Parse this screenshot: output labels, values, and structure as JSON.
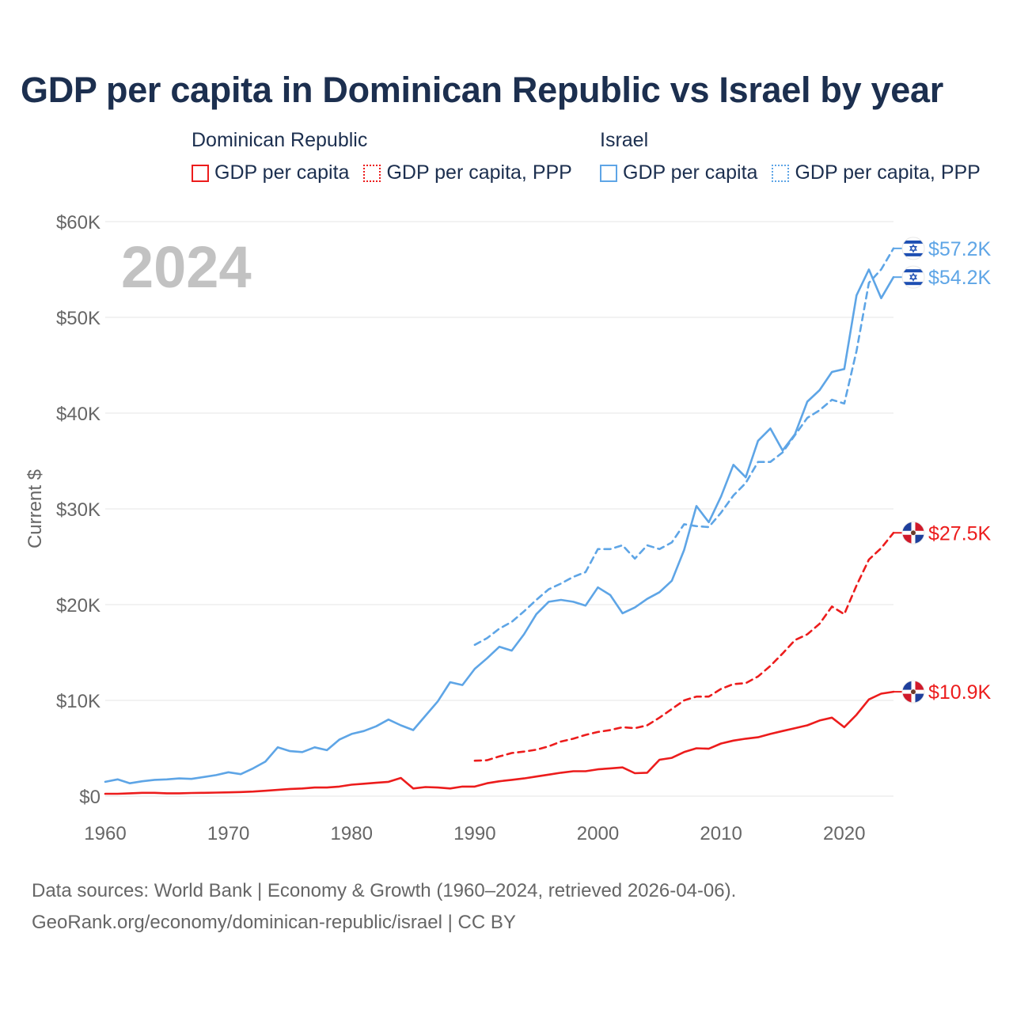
{
  "colors": {
    "dominican": "#ec1c1c",
    "israel": "#5ea5e6",
    "title": "#1c2f4f",
    "axis_text": "#666666",
    "year_watermark": "#c2c2c2",
    "grid": "#e6e6e6"
  },
  "legend": {
    "groups": [
      {
        "country": "Dominican Republic",
        "items": [
          "GDP per capita",
          "GDP per capita, PPP"
        ]
      },
      {
        "country": "Israel",
        "items": [
          "GDP per capita",
          "GDP per capita, PPP"
        ]
      }
    ]
  },
  "footer": {
    "line1": "Data sources: World Bank | Economy & Growth (1960–2024, retrieved 2026-04-06).",
    "line2": "GeoRank.org/economy/dominican-republic/israel | CC BY"
  },
  "chart_data": {
    "type": "line",
    "title": "GDP per capita in Dominican Republic vs Israel by year",
    "year_label": "2024",
    "xlabel": "",
    "ylabel": "Current $",
    "xlim": [
      1960,
      2024
    ],
    "ylim": [
      0,
      60000
    ],
    "x_ticks": [
      1960,
      1970,
      1980,
      1990,
      2000,
      2010,
      2020
    ],
    "y_ticks": [
      0,
      10000,
      20000,
      30000,
      40000,
      50000,
      60000
    ],
    "y_tick_labels": [
      "$0",
      "$10K",
      "$20K",
      "$30K",
      "$40K",
      "$50K",
      "$60K"
    ],
    "grid": true,
    "series": [
      {
        "name": "Israel GDP per capita, PPP",
        "country": "Israel",
        "color": "#5ea5e6",
        "dashed": true,
        "end_label": "$57.2K",
        "flag": "israel",
        "points": [
          [
            1990,
            15800
          ],
          [
            1991,
            16500
          ],
          [
            1992,
            17500
          ],
          [
            1993,
            18200
          ],
          [
            1994,
            19300
          ],
          [
            1995,
            20500
          ],
          [
            1996,
            21600
          ],
          [
            1997,
            22200
          ],
          [
            1998,
            22900
          ],
          [
            1999,
            23400
          ],
          [
            2000,
            25800
          ],
          [
            2001,
            25800
          ],
          [
            2002,
            26200
          ],
          [
            2003,
            24800
          ],
          [
            2004,
            26200
          ],
          [
            2005,
            25800
          ],
          [
            2006,
            26500
          ],
          [
            2007,
            28400
          ],
          [
            2008,
            28200
          ],
          [
            2009,
            28100
          ],
          [
            2010,
            29600
          ],
          [
            2011,
            31400
          ],
          [
            2012,
            32700
          ],
          [
            2013,
            34900
          ],
          [
            2014,
            34900
          ],
          [
            2015,
            35900
          ],
          [
            2016,
            37700
          ],
          [
            2017,
            39500
          ],
          [
            2018,
            40300
          ],
          [
            2019,
            41400
          ],
          [
            2020,
            41000
          ],
          [
            2021,
            46500
          ],
          [
            2022,
            53600
          ],
          [
            2023,
            55000
          ],
          [
            2024,
            57200
          ]
        ]
      },
      {
        "name": "Israel GDP per capita",
        "country": "Israel",
        "color": "#5ea5e6",
        "dashed": false,
        "end_label": "$54.2K",
        "flag": "israel",
        "points": [
          [
            1960,
            1500
          ],
          [
            1961,
            1750
          ],
          [
            1962,
            1350
          ],
          [
            1963,
            1550
          ],
          [
            1964,
            1700
          ],
          [
            1965,
            1750
          ],
          [
            1966,
            1850
          ],
          [
            1967,
            1800
          ],
          [
            1968,
            2000
          ],
          [
            1969,
            2200
          ],
          [
            1970,
            2500
          ],
          [
            1971,
            2300
          ],
          [
            1972,
            2900
          ],
          [
            1973,
            3600
          ],
          [
            1974,
            5100
          ],
          [
            1975,
            4700
          ],
          [
            1976,
            4600
          ],
          [
            1977,
            5100
          ],
          [
            1978,
            4800
          ],
          [
            1979,
            5900
          ],
          [
            1980,
            6500
          ],
          [
            1981,
            6800
          ],
          [
            1982,
            7300
          ],
          [
            1983,
            8000
          ],
          [
            1984,
            7400
          ],
          [
            1985,
            6900
          ],
          [
            1986,
            8400
          ],
          [
            1987,
            9900
          ],
          [
            1988,
            11900
          ],
          [
            1989,
            11600
          ],
          [
            1990,
            13300
          ],
          [
            1991,
            14400
          ],
          [
            1992,
            15600
          ],
          [
            1993,
            15200
          ],
          [
            1994,
            16900
          ],
          [
            1995,
            19000
          ],
          [
            1996,
            20300
          ],
          [
            1997,
            20500
          ],
          [
            1998,
            20300
          ],
          [
            1999,
            19900
          ],
          [
            2000,
            21800
          ],
          [
            2001,
            21000
          ],
          [
            2002,
            19100
          ],
          [
            2003,
            19700
          ],
          [
            2004,
            20600
          ],
          [
            2005,
            21300
          ],
          [
            2006,
            22500
          ],
          [
            2007,
            25700
          ],
          [
            2008,
            30300
          ],
          [
            2009,
            28600
          ],
          [
            2010,
            31300
          ],
          [
            2011,
            34600
          ],
          [
            2012,
            33300
          ],
          [
            2013,
            37100
          ],
          [
            2014,
            38400
          ],
          [
            2015,
            36100
          ],
          [
            2016,
            37800
          ],
          [
            2017,
            41200
          ],
          [
            2018,
            42400
          ],
          [
            2019,
            44300
          ],
          [
            2020,
            44600
          ],
          [
            2021,
            52300
          ],
          [
            2022,
            55000
          ],
          [
            2023,
            52000
          ],
          [
            2024,
            54200
          ]
        ]
      },
      {
        "name": "Dominican Republic GDP per capita, PPP",
        "country": "Dominican Republic",
        "color": "#ec1c1c",
        "dashed": true,
        "end_label": "$27.5K",
        "flag": "dominican",
        "points": [
          [
            1990,
            3700
          ],
          [
            1991,
            3750
          ],
          [
            1992,
            4150
          ],
          [
            1993,
            4500
          ],
          [
            1994,
            4650
          ],
          [
            1995,
            4850
          ],
          [
            1996,
            5200
          ],
          [
            1997,
            5700
          ],
          [
            1998,
            6000
          ],
          [
            1999,
            6400
          ],
          [
            2000,
            6700
          ],
          [
            2001,
            6900
          ],
          [
            2002,
            7200
          ],
          [
            2003,
            7100
          ],
          [
            2004,
            7400
          ],
          [
            2005,
            8200
          ],
          [
            2006,
            9100
          ],
          [
            2007,
            10000
          ],
          [
            2008,
            10400
          ],
          [
            2009,
            10400
          ],
          [
            2010,
            11200
          ],
          [
            2011,
            11700
          ],
          [
            2012,
            11800
          ],
          [
            2013,
            12500
          ],
          [
            2014,
            13600
          ],
          [
            2015,
            14900
          ],
          [
            2016,
            16300
          ],
          [
            2017,
            16900
          ],
          [
            2018,
            18000
          ],
          [
            2019,
            19800
          ],
          [
            2020,
            19000
          ],
          [
            2021,
            22000
          ],
          [
            2022,
            24700
          ],
          [
            2023,
            25900
          ],
          [
            2024,
            27500
          ]
        ]
      },
      {
        "name": "Dominican Republic GDP per capita",
        "country": "Dominican Republic",
        "color": "#ec1c1c",
        "dashed": false,
        "end_label": "$10.9K",
        "flag": "dominican",
        "points": [
          [
            1960,
            250
          ],
          [
            1961,
            250
          ],
          [
            1962,
            300
          ],
          [
            1963,
            350
          ],
          [
            1964,
            350
          ],
          [
            1965,
            300
          ],
          [
            1966,
            300
          ],
          [
            1967,
            330
          ],
          [
            1968,
            350
          ],
          [
            1969,
            370
          ],
          [
            1970,
            400
          ],
          [
            1971,
            430
          ],
          [
            1972,
            480
          ],
          [
            1973,
            560
          ],
          [
            1974,
            650
          ],
          [
            1975,
            750
          ],
          [
            1976,
            800
          ],
          [
            1977,
            900
          ],
          [
            1978,
            900
          ],
          [
            1979,
            1000
          ],
          [
            1980,
            1200
          ],
          [
            1981,
            1300
          ],
          [
            1982,
            1400
          ],
          [
            1983,
            1500
          ],
          [
            1984,
            1900
          ],
          [
            1985,
            800
          ],
          [
            1986,
            950
          ],
          [
            1987,
            900
          ],
          [
            1988,
            800
          ],
          [
            1989,
            1000
          ],
          [
            1990,
            1000
          ],
          [
            1991,
            1350
          ],
          [
            1992,
            1550
          ],
          [
            1993,
            1700
          ],
          [
            1994,
            1850
          ],
          [
            1995,
            2050
          ],
          [
            1996,
            2250
          ],
          [
            1997,
            2450
          ],
          [
            1998,
            2600
          ],
          [
            1999,
            2600
          ],
          [
            2000,
            2800
          ],
          [
            2001,
            2900
          ],
          [
            2002,
            3000
          ],
          [
            2003,
            2400
          ],
          [
            2004,
            2450
          ],
          [
            2005,
            3800
          ],
          [
            2006,
            4000
          ],
          [
            2007,
            4600
          ],
          [
            2008,
            5000
          ],
          [
            2009,
            4950
          ],
          [
            2010,
            5500
          ],
          [
            2011,
            5800
          ],
          [
            2012,
            6000
          ],
          [
            2013,
            6150
          ],
          [
            2014,
            6500
          ],
          [
            2015,
            6800
          ],
          [
            2016,
            7100
          ],
          [
            2017,
            7400
          ],
          [
            2018,
            7900
          ],
          [
            2019,
            8200
          ],
          [
            2020,
            7200
          ],
          [
            2021,
            8500
          ],
          [
            2022,
            10100
          ],
          [
            2023,
            10700
          ],
          [
            2024,
            10900
          ]
        ]
      }
    ]
  }
}
